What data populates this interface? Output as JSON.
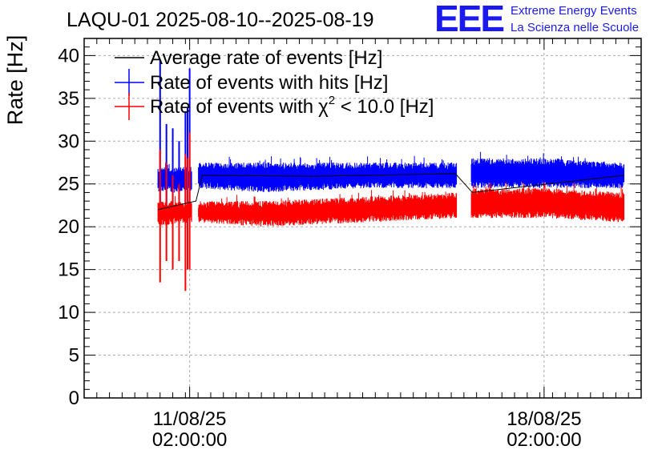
{
  "page": {
    "title": "LAQU-01 2025-08-10--2025-08-19",
    "logo": {
      "mark": "EEE",
      "line1": "Extreme Energy Events",
      "line2": "La Scienza nelle Scuole"
    }
  },
  "chart_data": {
    "type": "line",
    "title": "LAQU-01 2025-08-10--2025-08-19",
    "xlabel": "",
    "ylabel": "Rate [Hz]",
    "ylim": [
      0,
      42
    ],
    "yticks": [
      0,
      5,
      10,
      15,
      20,
      25,
      30,
      35,
      40
    ],
    "xticks": [
      {
        "date": "2025-08-11T02:00:00",
        "line1": "11/08/25",
        "line2": "02:00:00"
      },
      {
        "date": "2025-08-18T02:00:00",
        "line1": "18/08/25",
        "line2": "02:00:00"
      }
    ],
    "xlim": [
      "2025-08-09T00:00:00",
      "2025-08-20T00:00:00"
    ],
    "grid": true,
    "legend_position": "top-left",
    "series": [
      {
        "name": "Average rate of events [Hz]",
        "color": "#000000",
        "data": [
          {
            "t": "2025-08-10T11:00:00",
            "v": 22.0
          },
          {
            "t": "2025-08-11T05:00:00",
            "v": 23.0
          },
          {
            "t": "2025-08-11T08:00:00",
            "v": 26.0
          },
          {
            "t": "2025-08-13T12:00:00",
            "v": 25.9
          },
          {
            "t": "2025-08-16T08:00:00",
            "v": 26.2
          },
          {
            "t": "2025-08-16T16:00:00",
            "v": 24.0
          },
          {
            "t": "2025-08-19T16:00:00",
            "v": 26.0
          }
        ]
      },
      {
        "name": "Rate of events with hits [Hz]",
        "color": "#0000ff",
        "band": [
          {
            "t": "2025-08-10T11:00:00",
            "lo": 24.0,
            "hi": 27.0
          },
          {
            "t": "2025-08-11T02:00:00",
            "lo": 24.0,
            "hi": 27.0
          },
          {
            "t": "2025-08-11T06:00:00",
            "lo": 24.5,
            "hi": 27.5
          },
          {
            "t": "2025-08-12T12:00:00",
            "lo": 24.0,
            "hi": 27.5
          },
          {
            "t": "2025-08-14T12:00:00",
            "lo": 24.5,
            "hi": 27.5
          },
          {
            "t": "2025-08-16T08:00:00",
            "lo": 24.5,
            "hi": 27.5
          },
          {
            "t": "2025-08-16T16:00:00",
            "lo": 24.5,
            "hi": 28.0
          },
          {
            "t": "2025-08-18T02:00:00",
            "lo": 24.5,
            "hi": 28.0
          },
          {
            "t": "2025-08-19T16:00:00",
            "lo": 24.5,
            "hi": 27.5
          }
        ],
        "spikes": [
          {
            "t": "2025-08-10T12:00:00",
            "lo": 21.5,
            "hi": 39.5
          },
          {
            "t": "2025-08-10T15:00:00",
            "lo": 22.5,
            "hi": 32.0
          },
          {
            "t": "2025-08-10T18:00:00",
            "lo": 22.5,
            "hi": 31.5
          },
          {
            "t": "2025-08-10T21:00:00",
            "lo": 22.5,
            "hi": 30.0
          },
          {
            "t": "2025-08-11T00:00:00",
            "lo": 22.0,
            "hi": 33.5
          },
          {
            "t": "2025-08-11T01:00:00",
            "lo": 22.5,
            "hi": 34.0
          },
          {
            "t": "2025-08-11T02:00:00",
            "lo": 22.5,
            "hi": 38.5
          }
        ]
      },
      {
        "name": "Rate of events with χ² < 10.0 [Hz]",
        "legend_label": "Rate of events with",
        "legend_chi": "χ",
        "legend_sup": "2",
        "legend_tail": " < 10.0 [Hz]",
        "color": "#ff0000",
        "band": [
          {
            "t": "2025-08-10T11:00:00",
            "lo": 20.0,
            "hi": 23.0
          },
          {
            "t": "2025-08-11T02:00:00",
            "lo": 20.5,
            "hi": 23.0
          },
          {
            "t": "2025-08-11T06:00:00",
            "lo": 20.5,
            "hi": 23.0
          },
          {
            "t": "2025-08-12T12:00:00",
            "lo": 20.0,
            "hi": 23.0
          },
          {
            "t": "2025-08-14T12:00:00",
            "lo": 20.5,
            "hi": 23.5
          },
          {
            "t": "2025-08-16T08:00:00",
            "lo": 21.0,
            "hi": 24.0
          },
          {
            "t": "2025-08-16T16:00:00",
            "lo": 21.0,
            "hi": 24.5
          },
          {
            "t": "2025-08-18T02:00:00",
            "lo": 21.0,
            "hi": 24.5
          },
          {
            "t": "2025-08-19T16:00:00",
            "lo": 20.5,
            "hi": 24.0
          }
        ],
        "spikes": [
          {
            "t": "2025-08-10T12:00:00",
            "lo": 13.5,
            "hi": 29.0
          },
          {
            "t": "2025-08-10T15:00:00",
            "lo": 16.0,
            "hi": 27.5
          },
          {
            "t": "2025-08-10T18:00:00",
            "lo": 15.0,
            "hi": 26.0
          },
          {
            "t": "2025-08-10T21:00:00",
            "lo": 16.0,
            "hi": 25.0
          },
          {
            "t": "2025-08-11T00:00:00",
            "lo": 12.5,
            "hi": 28.5
          },
          {
            "t": "2025-08-11T01:00:00",
            "lo": 15.0,
            "hi": 28.0
          },
          {
            "t": "2025-08-11T02:00:00",
            "lo": 15.0,
            "hi": 31.0
          }
        ]
      }
    ]
  }
}
